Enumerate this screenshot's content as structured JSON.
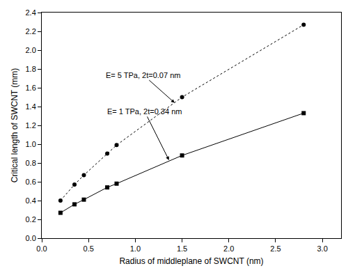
{
  "chart_data": {
    "type": "line",
    "x_label": "Radius of middleplane of SWCNT (nm)",
    "y_label": "Critical length of SWCNT (mm)",
    "series": [
      {
        "name": "E= 5 TPa, 2t=0.07 nm",
        "color": "#000000",
        "marker": "circle",
        "line_style": "dot",
        "x": [
          0.2,
          0.35,
          0.45,
          0.7,
          0.8,
          1.5,
          2.8
        ],
        "values": [
          0.4,
          0.57,
          0.67,
          0.9,
          0.99,
          1.5,
          2.27
        ]
      },
      {
        "name": "E= 1 TPa, 2t=0.34 nm",
        "color": "#000000",
        "marker": "square",
        "line_style": "solid",
        "x": [
          0.2,
          0.35,
          0.45,
          0.7,
          0.8,
          1.5,
          2.8
        ],
        "values": [
          0.27,
          0.36,
          0.41,
          0.54,
          0.58,
          0.88,
          1.33
        ]
      }
    ],
    "annotations": [
      {
        "text": "E= 5 TPa, 2t=0.07 nm",
        "x": 1.42,
        "y": 1.44
      },
      {
        "text": "E= 1 TPa, 2t=0.34 nm",
        "x": 1.36,
        "y": 0.83
      }
    ],
    "xlim": [
      0,
      3.2
    ],
    "xticks": [
      {
        "value": 0,
        "label": "0.0"
      },
      0.5,
      {
        "value": 1,
        "label": "1.0"
      },
      1.5,
      {
        "value": 2,
        "label": "2.0"
      },
      2.5,
      {
        "value": 3,
        "label": "3.0"
      }
    ],
    "ylim": [
      0,
      2.4
    ],
    "yticks": [
      {
        "value": 0,
        "label": "0.0"
      },
      0.2,
      0.4,
      0.6,
      0.8,
      {
        "value": 1,
        "label": "1.0"
      },
      1.2,
      1.4,
      1.6,
      1.8,
      {
        "value": 2,
        "label": "2.0"
      },
      2.2,
      2.4
    ],
    "grid": false
  }
}
